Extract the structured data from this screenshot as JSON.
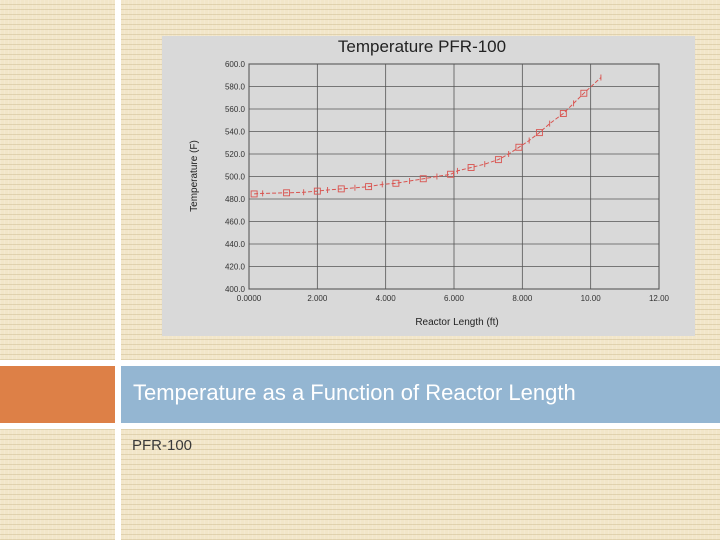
{
  "slide": {
    "title": "Temperature as a Function of Reactor Length",
    "subtitle": "PFR-100"
  },
  "colors": {
    "background": "#f2e6c9",
    "accent_orange": "#dd8047",
    "title_bar_blue": "#94b6d2",
    "series_red": "#d9534f"
  },
  "chart_data": {
    "type": "line",
    "title": "Temperature PFR-100",
    "xlabel": "Reactor Length (ft)",
    "ylabel": "Temperature (F)",
    "xlim": [
      0,
      12
    ],
    "ylim": [
      400,
      600
    ],
    "xticks": [
      0,
      2,
      4,
      6,
      8,
      10,
      12
    ],
    "xtick_labels": [
      "0.0000",
      "2.000",
      "4.000",
      "6.000",
      "8.000",
      "10.00",
      "12.00"
    ],
    "yticks": [
      400,
      420,
      440,
      460,
      480,
      500,
      520,
      540,
      560,
      580,
      600
    ],
    "ytick_labels": [
      "400.0",
      "420.0",
      "440.0",
      "460.0",
      "480.0",
      "500.0",
      "520.0",
      "540.0",
      "560.0",
      "580.0",
      "600.0"
    ],
    "grid": true,
    "series": [
      {
        "x": [
          0.15,
          0.4,
          1.1,
          1.6,
          2.0,
          2.3,
          2.7,
          3.1,
          3.5,
          3.9,
          4.3,
          4.7,
          5.1,
          5.5,
          5.9,
          6.1,
          6.5,
          6.9,
          7.3,
          7.6,
          7.9,
          8.2,
          8.5,
          8.8,
          9.2,
          9.5,
          9.8,
          10.3
        ],
        "y": [
          484.5,
          485,
          485.5,
          486,
          487,
          488,
          489,
          490,
          491,
          493,
          494,
          496,
          498,
          500,
          502,
          505,
          508,
          511,
          515,
          520,
          526,
          532,
          539,
          547,
          556,
          565,
          574,
          588
        ]
      }
    ]
  }
}
